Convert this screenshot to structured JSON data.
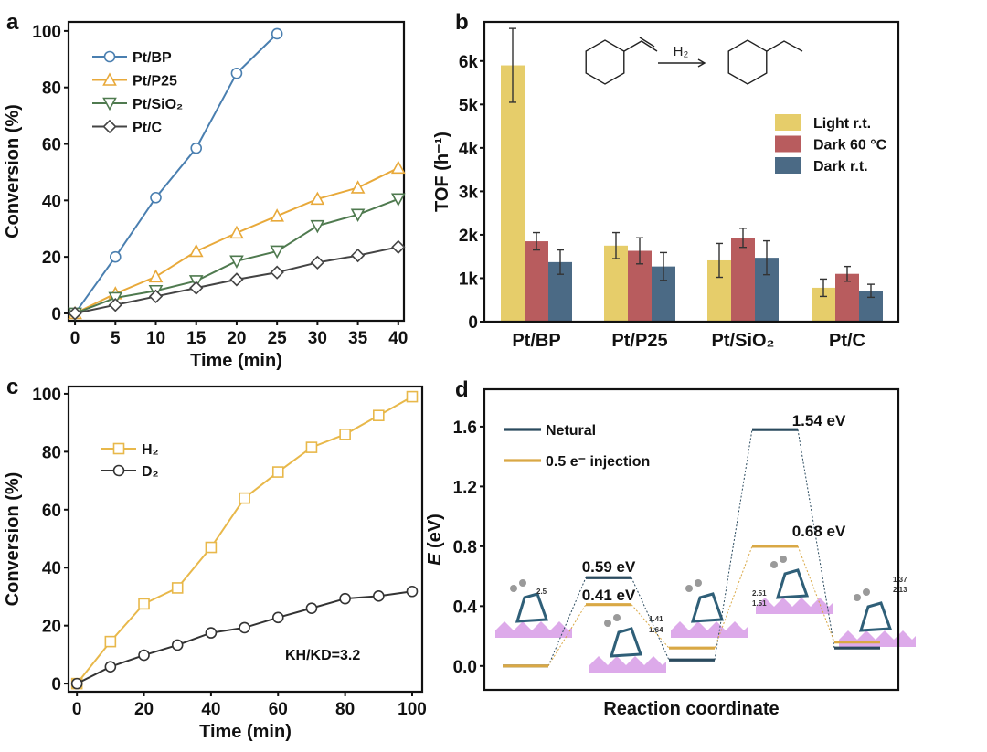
{
  "chart_data": [
    {
      "panel_label": "a",
      "type": "line",
      "xlabel": "Time (min)",
      "ylabel": "Conversion (%)",
      "xlim": [
        -0.8,
        40.7
      ],
      "ylim": [
        -2.6,
        103.2
      ],
      "xticks": [
        "0",
        "5",
        "10",
        "15",
        "20",
        "25",
        "30",
        "35",
        "40"
      ],
      "yticks": [
        "0",
        "20",
        "40",
        "60",
        "80",
        "100"
      ],
      "legend_position": "top-left",
      "grid": false,
      "series": [
        {
          "name": "Pt/BP",
          "marker": "circle",
          "color": "#4a7fb0",
          "x": [
            0,
            5,
            10,
            15,
            20,
            25
          ],
          "y": [
            0,
            20,
            41,
            58.5,
            85,
            99
          ]
        },
        {
          "name": "Pt/P25",
          "marker": "triangle-up",
          "color": "#e8a93a",
          "x": [
            0,
            5,
            10,
            15,
            20,
            25,
            30,
            35,
            40
          ],
          "y": [
            0,
            7,
            13,
            22,
            28.5,
            34.5,
            40.5,
            44.5,
            51.5
          ]
        },
        {
          "name": "Pt/SiO₂",
          "marker": "triangle-down",
          "color": "#4f7a4f",
          "x": [
            0,
            5,
            10,
            15,
            20,
            25,
            30,
            35,
            40
          ],
          "y": [
            0,
            5.5,
            8,
            11.5,
            18.5,
            22,
            31,
            35,
            40.5
          ]
        },
        {
          "name": "Pt/C",
          "marker": "diamond",
          "color": "#444444",
          "x": [
            0,
            5,
            10,
            15,
            20,
            25,
            30,
            35,
            40
          ],
          "y": [
            0,
            3,
            6,
            9,
            12,
            14.5,
            18,
            20.5,
            23.5
          ]
        }
      ]
    },
    {
      "panel_label": "b",
      "type": "bar",
      "ylabel": "TOF (h⁻¹)",
      "ylim": [
        0,
        6.9
      ],
      "yticks": [
        "0",
        "1k",
        "2k",
        "3k",
        "4k",
        "5k",
        "6k"
      ],
      "categories": [
        "Pt/BP",
        "Pt/P25",
        "Pt/SiO₂",
        "Pt/C"
      ],
      "legend_position": "right",
      "reaction_reagent": "H₂",
      "series": [
        {
          "name": "Light r.t.",
          "color": "#e6cd6a",
          "values": [
            5.9,
            1.75,
            1.41,
            0.78
          ],
          "errors": [
            0.85,
            0.3,
            0.39,
            0.2
          ]
        },
        {
          "name": "Dark 60 °C",
          "color": "#b85c5e",
          "values": [
            1.85,
            1.63,
            1.93,
            1.1
          ],
          "errors": [
            0.2,
            0.3,
            0.22,
            0.17
          ]
        },
        {
          "name": "Dark r.t.",
          "color": "#4b6a85",
          "values": [
            1.37,
            1.27,
            1.47,
            0.71
          ],
          "errors": [
            0.28,
            0.32,
            0.39,
            0.15
          ]
        }
      ]
    },
    {
      "panel_label": "c",
      "type": "line",
      "xlabel": "Time (min)",
      "ylabel": "Conversion (%)",
      "xlim": [
        -2.5,
        103
      ],
      "ylim": [
        -2.8,
        102.5
      ],
      "xticks": [
        "0",
        "20",
        "40",
        "60",
        "80",
        "100"
      ],
      "yticks": [
        "0",
        "20",
        "40",
        "60",
        "80",
        "100"
      ],
      "legend_position": "top-left",
      "annotation": "KH/KD=3.2",
      "series": [
        {
          "name": "H₂",
          "marker": "square",
          "color": "#e8b84a",
          "x": [
            0,
            10,
            20,
            30,
            40,
            50,
            60,
            70,
            80,
            90,
            100
          ],
          "y": [
            0,
            14.5,
            27.5,
            33,
            47,
            64,
            73,
            81.5,
            86,
            92.5,
            99
          ]
        },
        {
          "name": "D₂",
          "marker": "circle",
          "color": "#333333",
          "x": [
            0,
            10,
            20,
            30,
            40,
            50,
            60,
            70,
            80,
            90,
            100
          ],
          "y": [
            0,
            5.8,
            9.8,
            13.3,
            17.5,
            19.3,
            22.8,
            26,
            29.3,
            30.2,
            31.8
          ]
        }
      ]
    },
    {
      "panel_label": "d",
      "type": "line",
      "subtype": "energy-profile",
      "xlabel": "Reaction coordinate",
      "ylabel_italic": "E",
      "ylabel_unit": " (eV)",
      "ylim": [
        -0.16,
        1.85
      ],
      "yticks": [
        "0.0",
        "0.4",
        "0.8",
        "1.2",
        "1.6"
      ],
      "legend_position": "top-left",
      "series": [
        {
          "name": "Netural",
          "color": "#2a4a5e",
          "levels": [
            0,
            0.59,
            0.04,
            1.58,
            0.12
          ]
        },
        {
          "name": "0.5 e⁻ injection",
          "color": "#d9a845",
          "levels": [
            0,
            0.41,
            0.12,
            0.8,
            0.16
          ]
        }
      ],
      "barrier_labels": [
        {
          "text": "0.59 eV",
          "state": 2,
          "series": "Netural"
        },
        {
          "text": "0.41 eV",
          "state": 2,
          "series": "0.5 e⁻ injection"
        },
        {
          "text": "1.54 eV",
          "state": 4,
          "series": "Netural"
        },
        {
          "text": "0.68 eV",
          "state": 4,
          "series": "0.5 e⁻ injection"
        }
      ],
      "structure_labels": [
        "2.5",
        "1.41",
        "1.64",
        "2.51",
        "1.51",
        "1.37",
        "2.13"
      ]
    }
  ]
}
